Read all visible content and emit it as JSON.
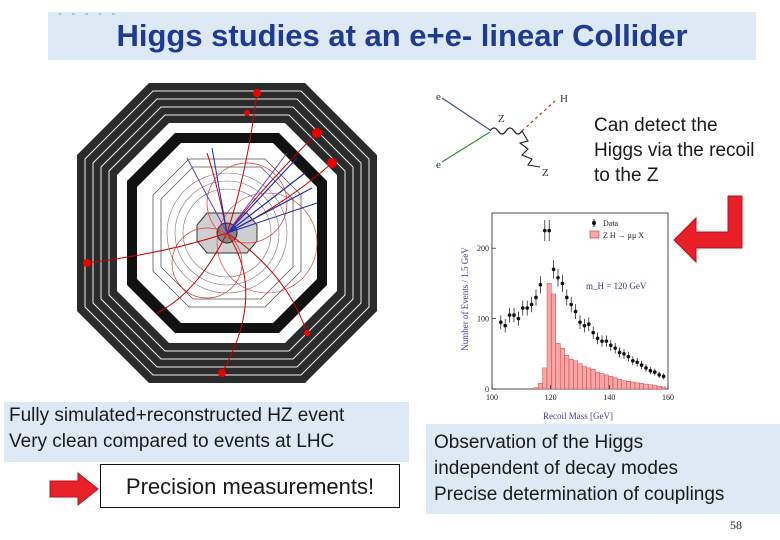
{
  "slide": {
    "title": "Higgs studies at an e+e- linear Collider",
    "title_dashes": "- - - - -",
    "recoil_caption": [
      "Can detect the",
      "Higgs via the recoil",
      "to the Z"
    ],
    "simulation_caption": [
      "Fully simulated+reconstructed HZ event",
      "Very clean compared to events at  LHC"
    ],
    "precision_label": "Precision measurements!",
    "observation_caption": [
      "Observation of the Higgs",
      "independent of decay modes",
      "Precise determination of couplings"
    ],
    "page_number": "58"
  },
  "feynman": {
    "labels": {
      "e_top": "e",
      "e_bottom": "e",
      "z": "Z",
      "h": "H",
      "z_decay": "Z"
    }
  },
  "colors": {
    "title_text": "#1f3a93",
    "title_band": "#dde9f4",
    "caption_band": "#dde9f4",
    "arrow_red": "#e8202a",
    "signal_fill": "#f4a7a7",
    "signal_edge": "#d9262b"
  },
  "chart_data": {
    "type": "bar",
    "xlabel": "Recoil Mass [GeV]",
    "ylabel": "Number of Events / 1.5 GeV",
    "xlim": [
      100,
      160
    ],
    "ylim": [
      0,
      250
    ],
    "x_ticks": [
      100,
      120,
      140,
      160
    ],
    "y_ticks": [
      0,
      100,
      200
    ],
    "annotation": "m_H = 120  GeV",
    "legend_position": "top-right",
    "legend": [
      "Data",
      "Z H → μμ X"
    ],
    "series": [
      {
        "name": "Data",
        "kind": "points",
        "x": [
          103,
          104.5,
          106,
          107.5,
          109,
          110.5,
          112,
          113.5,
          115,
          116.5,
          118,
          119.5,
          121,
          122.5,
          124,
          125.5,
          127,
          128.5,
          130,
          131.5,
          133,
          134.5,
          136,
          137.5,
          139,
          140.5,
          142,
          143.5,
          145,
          146.5,
          148,
          149.5,
          151,
          152.5,
          154,
          155.5,
          157,
          158.5
        ],
        "y": [
          95,
          90,
          105,
          105,
          100,
          115,
          115,
          120,
          130,
          148,
          225,
          225,
          170,
          158,
          150,
          130,
          120,
          110,
          95,
          90,
          92,
          80,
          72,
          68,
          68,
          62,
          58,
          52,
          50,
          46,
          40,
          38,
          34,
          30,
          26,
          24,
          20,
          18
        ]
      },
      {
        "name": "Z H → μμ X",
        "kind": "histogram",
        "x": [
          115,
          116.5,
          118,
          119.5,
          121,
          122.5,
          124,
          125.5,
          127,
          128.5,
          130,
          131.5,
          133,
          134.5,
          136,
          137.5,
          139,
          140.5,
          142,
          143.5,
          145,
          146.5,
          148,
          149.5,
          151,
          152.5,
          154,
          155.5,
          157,
          158.5
        ],
        "y": [
          2,
          8,
          30,
          150,
          135,
          65,
          58,
          48,
          42,
          40,
          36,
          32,
          30,
          28,
          24,
          22,
          20,
          18,
          16,
          14,
          12,
          11,
          10,
          9,
          8,
          7,
          6,
          5,
          4,
          3
        ]
      }
    ]
  }
}
